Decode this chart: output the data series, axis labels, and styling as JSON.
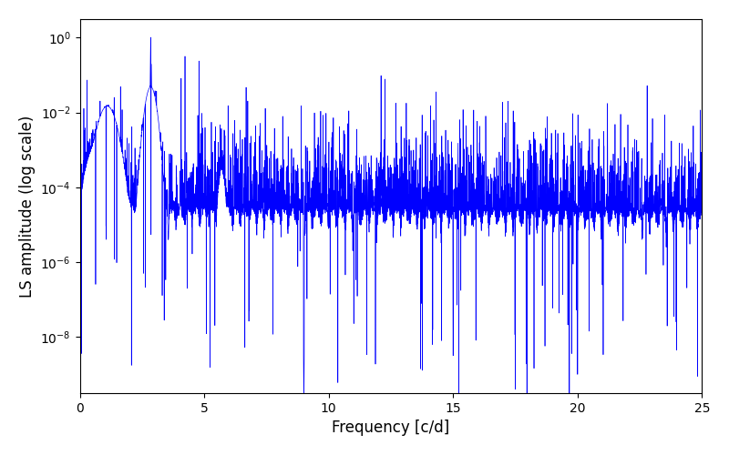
{
  "title": "",
  "xlabel": "Frequency [c/d]",
  "ylabel": "LS amplitude (log scale)",
  "xlim": [
    0,
    25
  ],
  "ylim_log": [
    -9.5,
    0.5
  ],
  "line_color": "#0000ff",
  "line_width": 0.5,
  "background_color": "#ffffff",
  "freq_min": 0.0,
  "freq_max": 25.0,
  "n_points": 5000,
  "peak_freq": 2.85,
  "peak_amplitude": 1.0,
  "seed": 99
}
